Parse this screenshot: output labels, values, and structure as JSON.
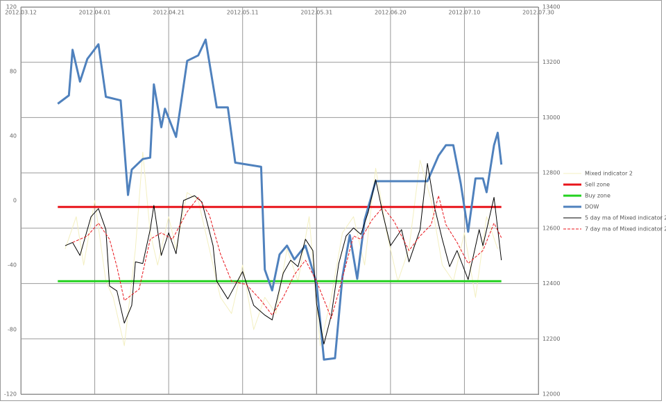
{
  "chart_data": {
    "type": "line",
    "xlim": [
      "2012.03.12",
      "2012.07.30"
    ],
    "xticks": [
      "2012.03.12",
      "2012.04.01",
      "2012.04.21",
      "2012.05.11",
      "2012.05.31",
      "2012.06.20",
      "2012.07.10",
      "2012.07.30"
    ],
    "ylim": [
      -120,
      120
    ],
    "yticks": [
      -120,
      -80,
      -40,
      0,
      40,
      80,
      120
    ],
    "y2lim": [
      12000,
      13400
    ],
    "y2ticks": [
      12000,
      12200,
      12400,
      12600,
      12800,
      13000,
      13200,
      13400
    ],
    "grid": true,
    "legend": "right",
    "series": [
      {
        "name": "Mixed indicator 2",
        "color": "#f3efc0",
        "line_width": 1,
        "dashed": false,
        "x": [
          "2012.03.24",
          "2012.03.27",
          "2012.03.29",
          "2012.04.01",
          "2012.04.04",
          "2012.04.06",
          "2012.04.09",
          "2012.04.12",
          "2012.04.14",
          "2012.04.16",
          "2012.04.18",
          "2012.04.21",
          "2012.04.23",
          "2012.04.26",
          "2012.04.29",
          "2012.05.02",
          "2012.05.05",
          "2012.05.08",
          "2012.05.11",
          "2012.05.14",
          "2012.05.17",
          "2012.05.20",
          "2012.05.23",
          "2012.05.26",
          "2012.05.29",
          "2012.06.01",
          "2012.06.04",
          "2012.06.07",
          "2012.06.10",
          "2012.06.13",
          "2012.06.16",
          "2012.06.19",
          "2012.06.22",
          "2012.06.25",
          "2012.06.28",
          "2012.07.01",
          "2012.07.04",
          "2012.07.07",
          "2012.07.10",
          "2012.07.13",
          "2012.07.16",
          "2012.07.19"
        ],
        "values": [
          -30,
          -10,
          -40,
          0,
          -50,
          -60,
          -90,
          -30,
          30,
          -20,
          -40,
          -10,
          -30,
          5,
          0,
          -30,
          -60,
          -70,
          -40,
          -80,
          -60,
          -70,
          -30,
          -50,
          -10,
          -90,
          -60,
          -20,
          -10,
          -40,
          20,
          -20,
          -50,
          -30,
          25,
          0,
          -40,
          -50,
          -20,
          -60,
          -10,
          -30
        ]
      },
      {
        "name": "Sell zone",
        "color": "#e8141b",
        "line_width": 3,
        "dashed": false,
        "x": [
          "2012.03.22",
          "2012.07.20"
        ],
        "values": [
          -4,
          -4
        ]
      },
      {
        "name": "Buy zone",
        "color": "#22d11e",
        "line_width": 3,
        "dashed": false,
        "x": [
          "2012.03.22",
          "2012.07.20"
        ],
        "values": [
          -50,
          -50
        ]
      },
      {
        "name": "DOW",
        "color": "#4f81bd",
        "line_width": 3,
        "dashed": false,
        "axis": "y2",
        "x": [
          "2012.03.22",
          "2012.03.25",
          "2012.03.26",
          "2012.03.28",
          "2012.03.30",
          "2012.04.02",
          "2012.04.04",
          "2012.04.08",
          "2012.04.10",
          "2012.04.11",
          "2012.04.14",
          "2012.04.16",
          "2012.04.17",
          "2012.04.19",
          "2012.04.20",
          "2012.04.23",
          "2012.04.26",
          "2012.04.29",
          "2012.05.01",
          "2012.05.04",
          "2012.05.07",
          "2012.05.09",
          "2012.05.16",
          "2012.05.17",
          "2012.05.19",
          "2012.05.21",
          "2012.05.23",
          "2012.05.25",
          "2012.05.28",
          "2012.05.31",
          "2012.06.02",
          "2012.06.05",
          "2012.06.07",
          "2012.06.09",
          "2012.06.11",
          "2012.06.13",
          "2012.06.16",
          "2012.06.30",
          "2012.07.03",
          "2012.07.05",
          "2012.07.07",
          "2012.07.09",
          "2012.07.11",
          "2012.07.13",
          "2012.07.15",
          "2012.07.16",
          "2012.07.18",
          "2012.07.19",
          "2012.07.20"
        ],
        "values": [
          13050,
          13080,
          13245,
          13130,
          13212,
          13265,
          13075,
          13062,
          12720,
          12812,
          12850,
          12855,
          13120,
          12965,
          13032,
          12930,
          13205,
          13225,
          13282,
          13037,
          13037,
          12837,
          12822,
          12450,
          12375,
          12505,
          12537,
          12487,
          12537,
          12400,
          12125,
          12130,
          12425,
          12575,
          12417,
          12630,
          12770,
          12770,
          12862,
          12900,
          12900,
          12762,
          12587,
          12780,
          12780,
          12730,
          12900,
          12945,
          12830
        ]
      },
      {
        "name": "5 day ma of Mixed indicator 2",
        "color": "#000000",
        "line_width": 1,
        "dashed": false,
        "x": [
          "2012.03.24",
          "2012.03.26",
          "2012.03.28",
          "2012.03.30",
          "2012.03.31",
          "2012.04.02",
          "2012.04.04",
          "2012.04.05",
          "2012.04.07",
          "2012.04.09",
          "2012.04.11",
          "2012.04.12",
          "2012.04.14",
          "2012.04.16",
          "2012.04.17",
          "2012.04.19",
          "2012.04.21",
          "2012.04.23",
          "2012.04.25",
          "2012.04.28",
          "2012.04.30",
          "2012.05.03",
          "2012.05.04",
          "2012.05.07",
          "2012.05.11",
          "2012.05.14",
          "2012.05.17",
          "2012.05.19",
          "2012.05.22",
          "2012.05.24",
          "2012.05.26",
          "2012.05.28",
          "2012.05.30",
          "2012.05.31",
          "2012.06.02",
          "2012.06.04",
          "2012.06.06",
          "2012.06.08",
          "2012.06.10",
          "2012.06.12",
          "2012.06.14",
          "2012.06.16",
          "2012.06.18",
          "2012.06.20",
          "2012.06.23",
          "2012.06.25",
          "2012.06.28",
          "2012.06.30",
          "2012.07.02",
          "2012.07.04",
          "2012.07.06",
          "2012.07.08",
          "2012.07.11",
          "2012.07.14",
          "2012.07.15",
          "2012.07.18",
          "2012.07.20"
        ],
        "values": [
          -28,
          -26,
          -34,
          -18,
          -10,
          -5,
          -18,
          -53,
          -56,
          -76,
          -65,
          -38,
          -39,
          -18,
          -3,
          -34,
          -20,
          -33,
          0,
          3,
          -1,
          -28,
          -50,
          -61,
          -44,
          -65,
          -71,
          -74,
          -45,
          -37,
          -41,
          -24,
          -31,
          -64,
          -89,
          -71,
          -39,
          -22,
          -17,
          -21,
          -7,
          13,
          -9,
          -28,
          -18,
          -38,
          -18,
          23,
          -5,
          -24,
          -41,
          -31,
          -49,
          -18,
          -28,
          2,
          -37
        ]
      },
      {
        "name": "7 day ma of Mixed indicator 2",
        "color": "#e8141b",
        "line_width": 1,
        "dashed": true,
        "x": [
          "2012.03.26",
          "2012.03.30",
          "2012.04.02",
          "2012.04.05",
          "2012.04.07",
          "2012.04.09",
          "2012.04.13",
          "2012.04.16",
          "2012.04.19",
          "2012.04.22",
          "2012.04.26",
          "2012.04.29",
          "2012.05.02",
          "2012.05.05",
          "2012.05.08",
          "2012.05.12",
          "2012.05.16",
          "2012.05.19",
          "2012.05.22",
          "2012.05.25",
          "2012.05.28",
          "2012.05.31",
          "2012.06.04",
          "2012.06.07",
          "2012.06.10",
          "2012.06.12",
          "2012.06.15",
          "2012.06.18",
          "2012.06.21",
          "2012.06.25",
          "2012.06.28",
          "2012.07.01",
          "2012.07.03",
          "2012.07.05",
          "2012.07.08",
          "2012.07.11",
          "2012.07.15",
          "2012.07.18",
          "2012.07.20"
        ],
        "values": [
          -26,
          -22,
          -14,
          -24,
          -41,
          -62,
          -55,
          -24,
          -20,
          -24,
          -7,
          2,
          -9,
          -33,
          -50,
          -52,
          -62,
          -71,
          -60,
          -46,
          -37,
          -50,
          -73,
          -48,
          -22,
          -24,
          -12,
          -4,
          -13,
          -31,
          -22,
          -15,
          3,
          -15,
          -26,
          -39,
          -31,
          -14,
          -23
        ]
      }
    ]
  }
}
